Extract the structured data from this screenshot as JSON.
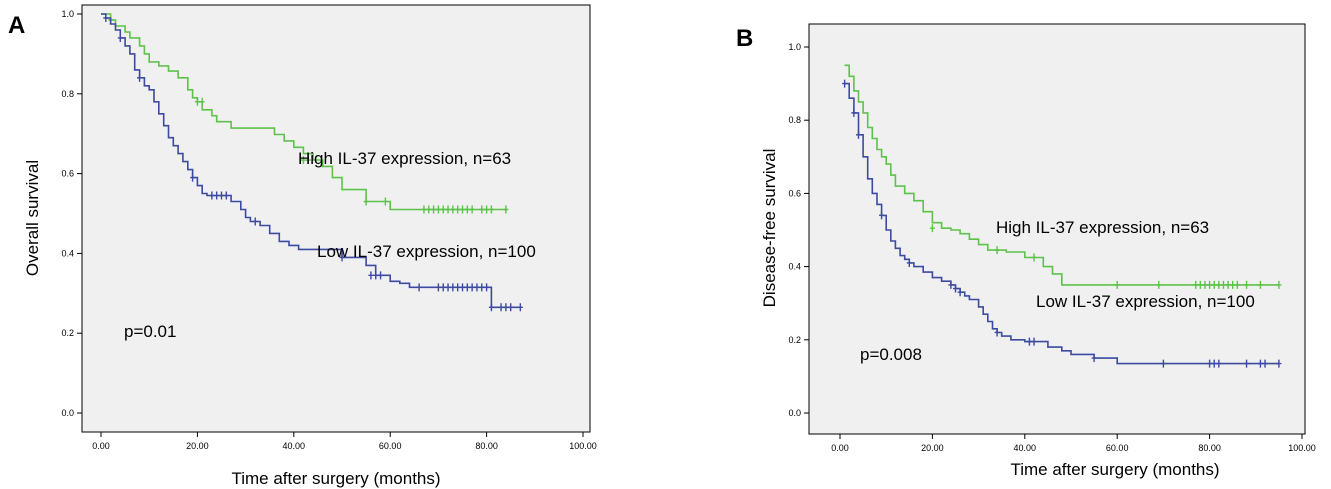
{
  "colors": {
    "high": "#5dc24a",
    "low": "#3c4aa0",
    "plot_bg": "#f0f0f0"
  },
  "chart_data": [
    {
      "panel": "A",
      "type": "line",
      "step": true,
      "ylabel": "Overall survival",
      "xlabel": "Time after surgery (months)",
      "xlim": [
        0,
        100
      ],
      "ylim": [
        0,
        1
      ],
      "x_ticks": [
        0,
        20,
        40,
        60,
        80,
        100
      ],
      "x_tick_labels": [
        "0.00",
        "20.00",
        "40.00",
        "60.00",
        "80.00",
        "100.00"
      ],
      "y_ticks": [
        0,
        0.2,
        0.4,
        0.6,
        0.8,
        1.0
      ],
      "y_tick_labels": [
        "0.0",
        "0.2",
        "0.4",
        "0.6",
        "0.8",
        "1.0"
      ],
      "pvalue": "p=0.01",
      "series": [
        {
          "key": "high",
          "label": "High IL-37 expression, n=63",
          "x": [
            0,
            1,
            2,
            3,
            5,
            6,
            7,
            8,
            9,
            10,
            12,
            14,
            16,
            18,
            19,
            20,
            21,
            23,
            24,
            27,
            30,
            32,
            34,
            36,
            38,
            40,
            42,
            44,
            46,
            48,
            50,
            55,
            60,
            84
          ],
          "y": [
            1.0,
            1.0,
            0.985,
            0.97,
            0.955,
            0.94,
            0.94,
            0.92,
            0.9,
            0.88,
            0.87,
            0.857,
            0.84,
            0.81,
            0.79,
            0.78,
            0.76,
            0.745,
            0.73,
            0.714,
            0.714,
            0.714,
            0.714,
            0.698,
            0.682,
            0.666,
            0.65,
            0.634,
            0.618,
            0.59,
            0.56,
            0.53,
            0.51,
            0.51
          ],
          "censor_x": [
            2,
            20,
            21,
            42,
            43,
            55,
            59,
            67,
            68,
            69,
            70,
            71,
            72,
            73,
            74,
            75,
            76,
            77,
            79,
            80,
            81,
            84
          ],
          "censor_y": [
            0.985,
            0.78,
            0.78,
            0.634,
            0.634,
            0.53,
            0.53,
            0.51,
            0.51,
            0.51,
            0.51,
            0.51,
            0.51,
            0.51,
            0.51,
            0.51,
            0.51,
            0.51,
            0.51,
            0.51,
            0.51,
            0.51
          ]
        },
        {
          "key": "low",
          "label": "Low IL-37 expression, n=100",
          "x": [
            0,
            1,
            2,
            3,
            4,
            5,
            6,
            7,
            8,
            9,
            10,
            11,
            12,
            13,
            14,
            15,
            16,
            17,
            18,
            19,
            20,
            21,
            22,
            23,
            25,
            27,
            29,
            30,
            31,
            33,
            35,
            37,
            39,
            41,
            45,
            50,
            55,
            57,
            60,
            62,
            64,
            80,
            81,
            87
          ],
          "y": [
            1.0,
            0.99,
            0.975,
            0.96,
            0.94,
            0.92,
            0.9,
            0.86,
            0.84,
            0.82,
            0.81,
            0.78,
            0.75,
            0.72,
            0.69,
            0.67,
            0.65,
            0.63,
            0.61,
            0.59,
            0.57,
            0.55,
            0.545,
            0.545,
            0.545,
            0.53,
            0.51,
            0.49,
            0.48,
            0.47,
            0.45,
            0.43,
            0.42,
            0.41,
            0.41,
            0.39,
            0.37,
            0.345,
            0.33,
            0.325,
            0.315,
            0.315,
            0.265,
            0.265
          ],
          "censor_x": [
            1,
            4,
            8,
            19,
            23,
            24,
            25,
            26,
            32,
            50,
            56,
            57,
            58,
            66,
            70,
            71,
            72,
            73,
            74,
            75,
            76,
            77,
            78,
            79,
            80,
            81,
            83,
            84,
            85,
            87
          ],
          "censor_y": [
            0.99,
            0.94,
            0.84,
            0.59,
            0.545,
            0.545,
            0.545,
            0.545,
            0.48,
            0.39,
            0.345,
            0.345,
            0.345,
            0.315,
            0.315,
            0.315,
            0.315,
            0.315,
            0.315,
            0.315,
            0.315,
            0.315,
            0.315,
            0.315,
            0.315,
            0.265,
            0.265,
            0.265,
            0.265,
            0.265
          ]
        }
      ]
    },
    {
      "panel": "B",
      "type": "line",
      "step": true,
      "ylabel": "Disease-free survival",
      "xlabel": "Time after surgery (months)",
      "xlim": [
        -5,
        100
      ],
      "ylim": [
        -0.04,
        1.04
      ],
      "x_ticks": [
        0,
        20,
        40,
        60,
        80,
        100
      ],
      "x_tick_labels": [
        "0.00",
        "20.00",
        "40.00",
        "60.00",
        "80.00",
        "100.00"
      ],
      "y_ticks": [
        0,
        0.2,
        0.4,
        0.6,
        0.8,
        1.0
      ],
      "y_tick_labels": [
        "0.0",
        "0.2",
        "0.4",
        "0.6",
        "0.8",
        "1.0"
      ],
      "pvalue": "p=0.008",
      "series": [
        {
          "key": "high",
          "label": "High IL-37 expression, n=63",
          "x": [
            1,
            2,
            3,
            4,
            5,
            6,
            7,
            8,
            9,
            10,
            11,
            12,
            14,
            16,
            18,
            20,
            22,
            24,
            26,
            28,
            30,
            32,
            34,
            36,
            40,
            44,
            46,
            48,
            95
          ],
          "y": [
            0.95,
            0.92,
            0.88,
            0.85,
            0.82,
            0.78,
            0.75,
            0.72,
            0.7,
            0.68,
            0.65,
            0.62,
            0.6,
            0.58,
            0.55,
            0.52,
            0.505,
            0.5,
            0.49,
            0.475,
            0.46,
            0.445,
            0.445,
            0.44,
            0.425,
            0.4,
            0.38,
            0.35,
            0.35
          ],
          "censor_x": [
            20,
            34,
            42,
            60,
            69,
            77,
            78,
            79,
            80,
            81,
            82,
            83,
            84,
            85,
            86,
            88,
            91,
            95
          ],
          "censor_y": [
            0.505,
            0.445,
            0.425,
            0.35,
            0.35,
            0.35,
            0.35,
            0.35,
            0.35,
            0.35,
            0.35,
            0.35,
            0.35,
            0.35,
            0.35,
            0.35,
            0.35,
            0.35
          ]
        },
        {
          "key": "low",
          "label": "Low IL-37 expression, n=100",
          "x": [
            1,
            2,
            3,
            4,
            5,
            6,
            7,
            8,
            9,
            10,
            11,
            12,
            13,
            14,
            15,
            16,
            18,
            20,
            22,
            24,
            25,
            26,
            27,
            28,
            30,
            31,
            32,
            33,
            34,
            35,
            37,
            40,
            45,
            48,
            50,
            55,
            60,
            95
          ],
          "y": [
            0.9,
            0.86,
            0.82,
            0.76,
            0.7,
            0.64,
            0.6,
            0.57,
            0.54,
            0.5,
            0.47,
            0.45,
            0.43,
            0.42,
            0.41,
            0.4,
            0.385,
            0.37,
            0.36,
            0.35,
            0.34,
            0.33,
            0.32,
            0.31,
            0.29,
            0.27,
            0.25,
            0.23,
            0.22,
            0.21,
            0.2,
            0.195,
            0.18,
            0.17,
            0.16,
            0.15,
            0.135,
            0.135
          ],
          "censor_x": [
            1,
            3,
            4,
            9,
            15,
            24,
            25,
            26,
            34,
            41,
            42,
            55,
            70,
            80,
            81,
            82,
            88,
            91,
            92,
            95
          ],
          "censor_y": [
            0.9,
            0.82,
            0.76,
            0.54,
            0.41,
            0.35,
            0.34,
            0.33,
            0.22,
            0.195,
            0.195,
            0.15,
            0.135,
            0.135,
            0.135,
            0.135,
            0.135,
            0.135,
            0.135,
            0.135
          ]
        }
      ]
    }
  ]
}
